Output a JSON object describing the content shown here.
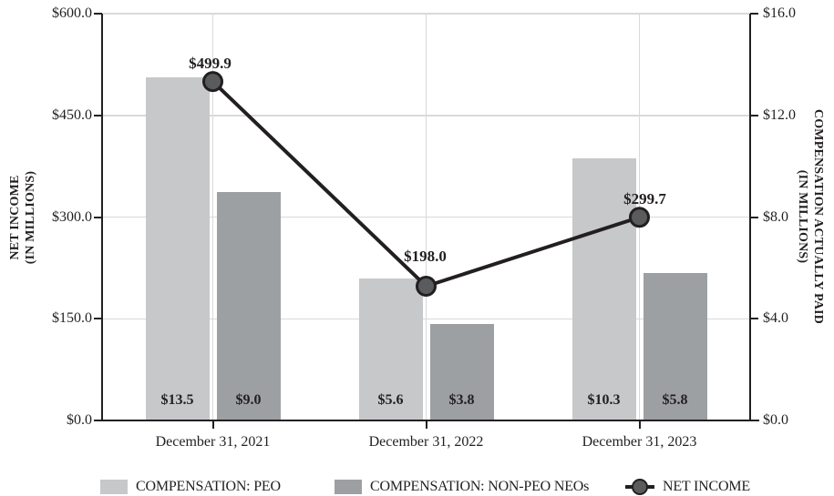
{
  "chart_data": {
    "type": "combo",
    "categories": [
      "December 31, 2021",
      "December 31, 2022",
      "December 31, 2023"
    ],
    "series": [
      {
        "name": "COMPENSATION: PEO",
        "type": "bar",
        "axis": "right",
        "values": [
          13.5,
          5.6,
          10.3
        ],
        "labels": [
          "$13.5",
          "$5.6",
          "$10.3"
        ],
        "color": "#c6c8ca"
      },
      {
        "name": "COMPENSATION: NON-PEO NEOs",
        "type": "bar",
        "axis": "right",
        "values": [
          9.0,
          3.8,
          5.8
        ],
        "labels": [
          "$9.0",
          "$3.8",
          "$5.8"
        ],
        "color": "#9da0a3"
      },
      {
        "name": "NET INCOME",
        "type": "line",
        "axis": "left",
        "values": [
          499.9,
          198.0,
          299.7
        ],
        "labels": [
          "$499.9",
          "$198.0",
          "$299.7"
        ],
        "color": "#231f20",
        "marker_fill": "#595b5d"
      }
    ],
    "left_axis": {
      "title_line1": "NET INCOME",
      "title_line2": "(IN MILLIONS)",
      "range": [
        0,
        600
      ],
      "ticks": [
        {
          "label": "$600.0",
          "value": 600
        },
        {
          "label": "$450.0",
          "value": 450
        },
        {
          "label": "$300.0",
          "value": 300
        },
        {
          "label": "$150.0",
          "value": 150
        },
        {
          "label": "$0.0",
          "value": 0
        }
      ]
    },
    "right_axis": {
      "title_line1": "COMPENSATION ACTUALLY PAID",
      "title_line2": "(IN MILLIONS)",
      "range": [
        0,
        16
      ],
      "ticks": [
        {
          "label": "$16.0",
          "value": 16
        },
        {
          "label": "$12.0",
          "value": 12
        },
        {
          "label": "$8.0",
          "value": 8
        },
        {
          "label": "$4.0",
          "value": 4
        },
        {
          "label": "$0.0",
          "value": 0
        }
      ]
    },
    "grid": {
      "horizontal": true,
      "vertical_at_category_centers": true,
      "color": "#d9d9d9"
    }
  },
  "colors": {
    "bar_peo": "#c6c8ca",
    "bar_non_peo": "#9da0a3",
    "line": "#231f20",
    "marker_fill": "#595b5d",
    "gridline": "#d9d9d9",
    "axis": "#231f20",
    "text": "#231f20"
  }
}
